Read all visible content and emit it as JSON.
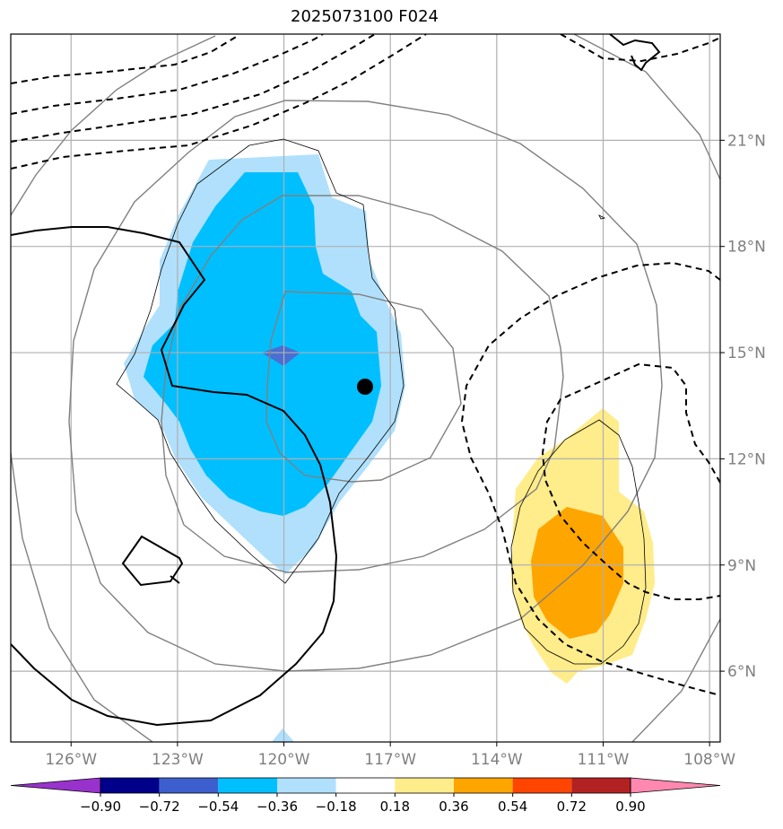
{
  "title": "2025073100 F024",
  "map": {
    "lon_ticks": [
      {
        "lon": -126,
        "label": "126°W"
      },
      {
        "lon": -123,
        "label": "123°W"
      },
      {
        "lon": -120,
        "label": "120°W"
      },
      {
        "lon": -117,
        "label": "117°W"
      },
      {
        "lon": -114,
        "label": "114°W"
      },
      {
        "lon": -111,
        "label": "111°W"
      },
      {
        "lon": -108,
        "label": "108°W"
      }
    ],
    "lat_ticks": [
      {
        "lat": 21,
        "label": "21°N"
      },
      {
        "lat": 18,
        "label": "18°N"
      },
      {
        "lat": 15,
        "label": "15°N"
      },
      {
        "lat": 12,
        "label": "12°N"
      },
      {
        "lat": 9,
        "label": "9°N"
      },
      {
        "lat": 6,
        "label": "6°N"
      }
    ],
    "extent": {
      "lon": [
        -127.7,
        -107.7
      ],
      "lat": [
        4.0,
        24.0
      ]
    },
    "center_marker": {
      "lon": -117.7,
      "lat": 14.0
    }
  },
  "colorbar": {
    "levels": [
      "−0.90",
      "−0.72",
      "−0.54",
      "−0.36",
      "−0.18",
      "0.18",
      "0.36",
      "0.54",
      "0.72",
      "0.90"
    ],
    "colors": [
      "#9932cc",
      "#00008b",
      "#3d5fcd",
      "#00bfff",
      "#b0e0fc",
      "#ffffff",
      "#ffec8b",
      "#ffa500",
      "#ff4500",
      "#b22222",
      "#ff88b0"
    ]
  },
  "colors": {
    "shade_neg_light": "#b0e0fc",
    "shade_neg_mid": "#00bfff",
    "shade_neg_dark": "#4a6fd0",
    "shade_pos_light": "#ffec8b",
    "shade_pos_mid": "#ffa500",
    "grid": "#b0b0b0",
    "circle": "#808080"
  }
}
